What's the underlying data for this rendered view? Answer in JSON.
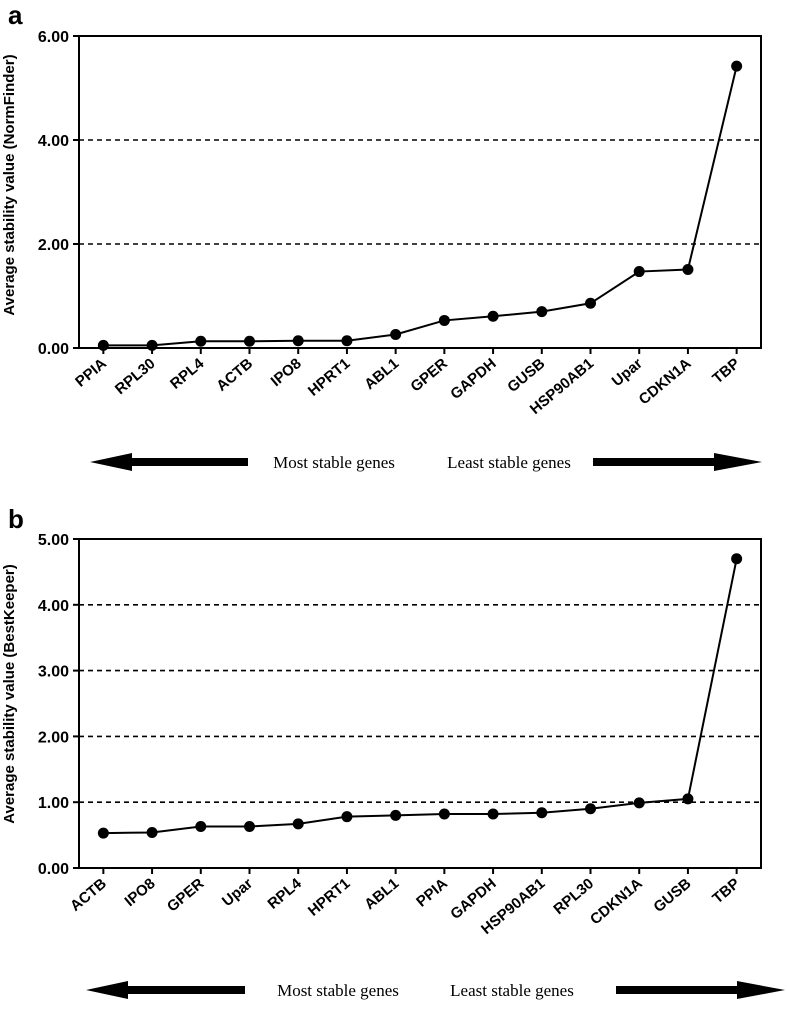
{
  "chart_data": [
    {
      "type": "line",
      "panel_label": "a",
      "ylabel": "Average stability value (NormFinder)",
      "ylim": [
        0,
        6
      ],
      "yticks": [
        "0.00",
        "2.00",
        "4.00",
        "6.00"
      ],
      "dashed_gridlines_at": [
        2,
        4
      ],
      "categories": [
        "PPIA",
        "RPL30",
        "RPL4",
        "ACTB",
        "IPO8",
        "HPRT1",
        "ABL1",
        "GPER",
        "GAPDH",
        "GUSB",
        "HSP90AB1",
        "Upar",
        "CDKN1A",
        "TBP"
      ],
      "values": [
        0.05,
        0.05,
        0.13,
        0.13,
        0.14,
        0.14,
        0.26,
        0.53,
        0.61,
        0.7,
        0.86,
        1.47,
        1.51,
        5.42
      ],
      "arrow_left_text": "Most stable genes",
      "arrow_right_text": "Least stable genes"
    },
    {
      "type": "line",
      "panel_label": "b",
      "ylabel": "Average stability value (BestKeeper)",
      "ylim": [
        0,
        5
      ],
      "yticks": [
        "0.00",
        "1.00",
        "2.00",
        "3.00",
        "4.00",
        "5.00"
      ],
      "dashed_gridlines_at": [
        1,
        2,
        3,
        4
      ],
      "categories": [
        "ACTB",
        "IPO8",
        "GPER",
        "Upar",
        "RPL4",
        "HPRT1",
        "ABL1",
        "PPIA",
        "GAPDH",
        "HSP90AB1",
        "RPL30",
        "CDKN1A",
        "GUSB",
        "TBP"
      ],
      "values": [
        0.53,
        0.54,
        0.63,
        0.63,
        0.67,
        0.78,
        0.8,
        0.82,
        0.82,
        0.84,
        0.9,
        0.99,
        1.05,
        4.7
      ],
      "arrow_left_text": "Most stable genes",
      "arrow_right_text": "Least stable genes"
    }
  ]
}
